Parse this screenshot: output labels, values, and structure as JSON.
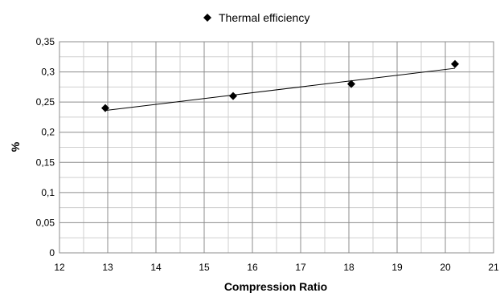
{
  "chart_data": {
    "type": "scatter",
    "xlabel": "Compression Ratio",
    "ylabel": "%",
    "xlim": [
      12,
      21
    ],
    "ylim": [
      0,
      0.35
    ],
    "x_ticks": [
      "12",
      "13",
      "14",
      "15",
      "16",
      "17",
      "18",
      "19",
      "20",
      "21"
    ],
    "y_ticks": [
      "0",
      "0,05",
      "0,1",
      "0,15",
      "0,2",
      "0,25",
      "0,3",
      "0,35"
    ],
    "grid": true,
    "legend_position": "top",
    "series": [
      {
        "name": "Thermal efficiency",
        "marker": "diamond",
        "color": "#000000",
        "points": [
          {
            "x": 12.95,
            "y": 0.24
          },
          {
            "x": 15.6,
            "y": 0.26
          },
          {
            "x": 18.05,
            "y": 0.28
          },
          {
            "x": 20.2,
            "y": 0.313
          }
        ]
      }
    ],
    "trendline": {
      "type": "linear",
      "color": "#000000",
      "x_start": 12.95,
      "x_end": 20.2,
      "y_start": 0.236,
      "y_end": 0.306
    }
  }
}
